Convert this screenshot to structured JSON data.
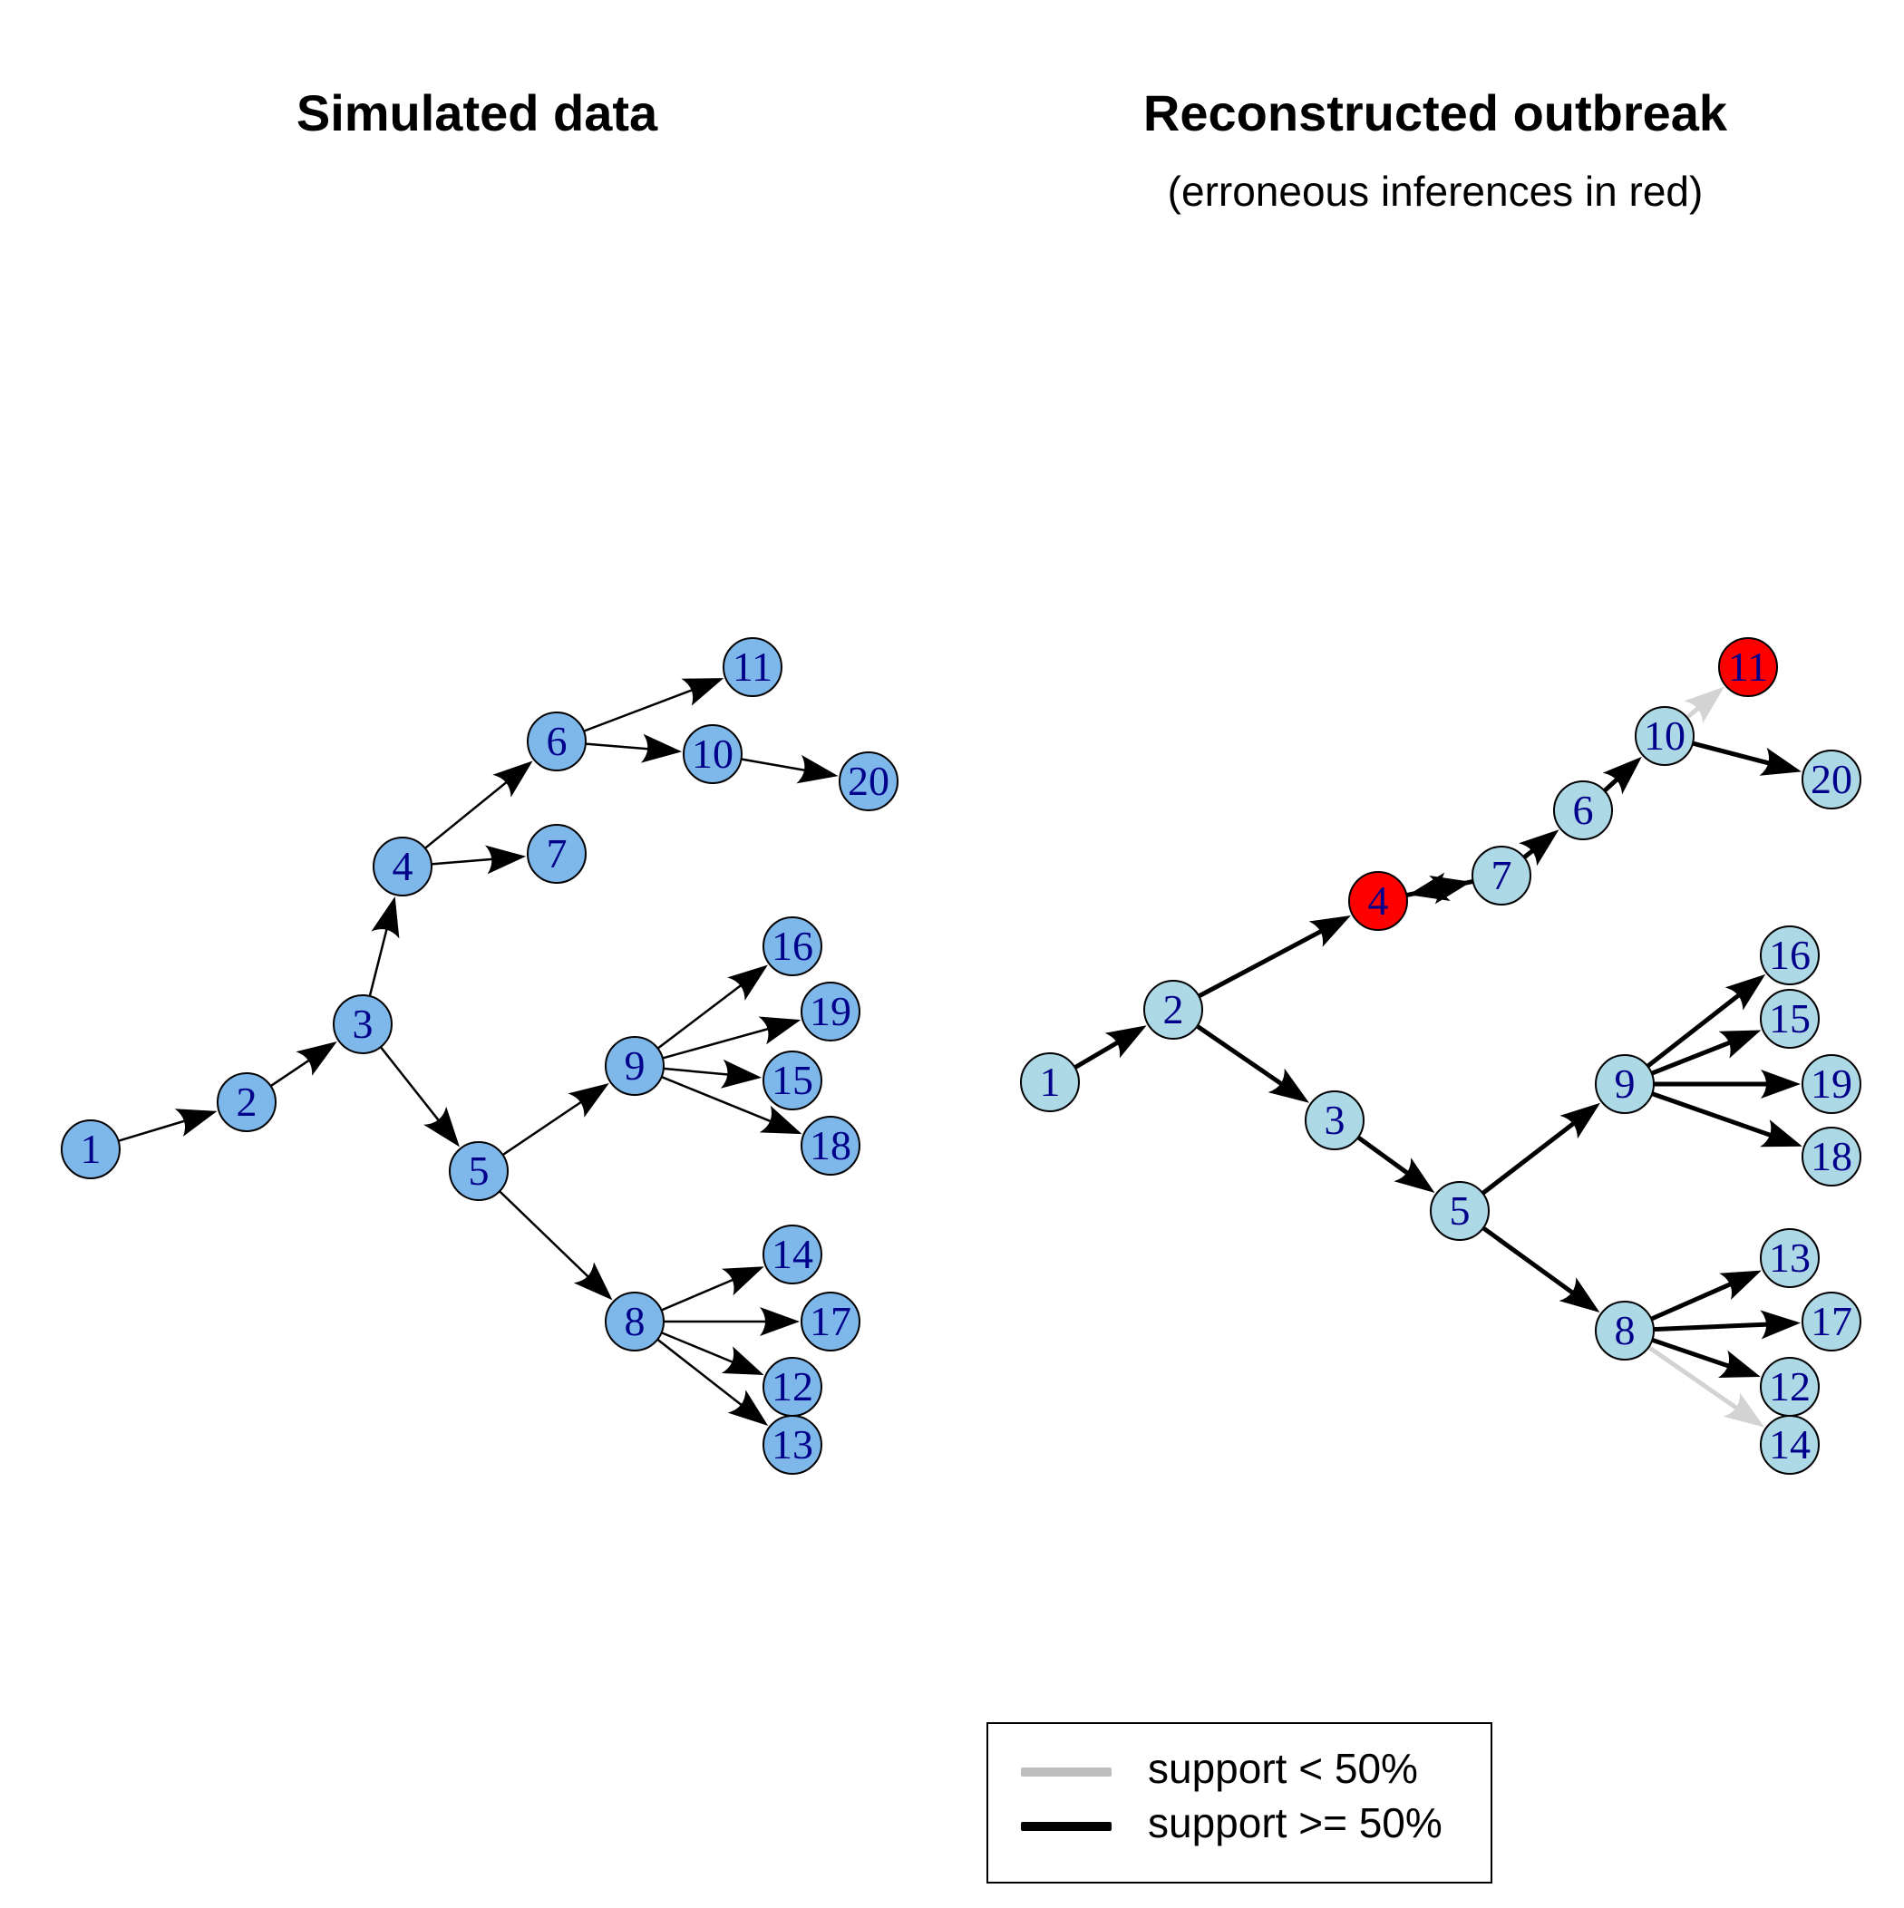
{
  "panels": [
    {
      "title": "Simulated data",
      "subtitle": "",
      "node_fill": "#7EB8EA",
      "edge_style": "thin",
      "nodes": [
        "1",
        "2",
        "3",
        "4",
        "5",
        "6",
        "7",
        "8",
        "9",
        "10",
        "11",
        "12",
        "13",
        "14",
        "15",
        "16",
        "17",
        "18",
        "19",
        "20"
      ],
      "edges": [
        {
          "from": "1",
          "to": "2",
          "support": "high"
        },
        {
          "from": "2",
          "to": "3",
          "support": "high"
        },
        {
          "from": "3",
          "to": "4",
          "support": "high"
        },
        {
          "from": "3",
          "to": "5",
          "support": "high"
        },
        {
          "from": "4",
          "to": "6",
          "support": "high"
        },
        {
          "from": "4",
          "to": "7",
          "support": "high"
        },
        {
          "from": "6",
          "to": "11",
          "support": "high"
        },
        {
          "from": "6",
          "to": "10",
          "support": "high"
        },
        {
          "from": "10",
          "to": "20",
          "support": "high"
        },
        {
          "from": "5",
          "to": "9",
          "support": "high"
        },
        {
          "from": "5",
          "to": "8",
          "support": "high"
        },
        {
          "from": "9",
          "to": "16",
          "support": "high"
        },
        {
          "from": "9",
          "to": "19",
          "support": "high"
        },
        {
          "from": "9",
          "to": "15",
          "support": "high"
        },
        {
          "from": "9",
          "to": "18",
          "support": "high"
        },
        {
          "from": "8",
          "to": "14",
          "support": "high"
        },
        {
          "from": "8",
          "to": "17",
          "support": "high"
        },
        {
          "from": "8",
          "to": "12",
          "support": "high"
        },
        {
          "from": "8",
          "to": "13",
          "support": "high"
        }
      ],
      "highlighted_nodes": []
    },
    {
      "title": "Reconstructed outbreak",
      "subtitle": "(erroneous inferences in red)",
      "node_fill": "#ADD8E6",
      "edge_style": "thick",
      "nodes": [
        "1",
        "2",
        "3",
        "4",
        "5",
        "6",
        "7",
        "8",
        "9",
        "10",
        "11",
        "12",
        "13",
        "14",
        "15",
        "16",
        "17",
        "18",
        "19",
        "20"
      ],
      "edges": [
        {
          "from": "1",
          "to": "2",
          "support": "high"
        },
        {
          "from": "2",
          "to": "4",
          "support": "high"
        },
        {
          "from": "2",
          "to": "3",
          "support": "high"
        },
        {
          "from": "3",
          "to": "5",
          "support": "high"
        },
        {
          "from": "4",
          "to": "7",
          "support": "high"
        },
        {
          "from": "7",
          "to": "4",
          "support": "high"
        },
        {
          "from": "7",
          "to": "6",
          "support": "high"
        },
        {
          "from": "6",
          "to": "10",
          "support": "high"
        },
        {
          "from": "10",
          "to": "11",
          "support": "low"
        },
        {
          "from": "10",
          "to": "20",
          "support": "high"
        },
        {
          "from": "5",
          "to": "9",
          "support": "high"
        },
        {
          "from": "5",
          "to": "8",
          "support": "high"
        },
        {
          "from": "9",
          "to": "16",
          "support": "high"
        },
        {
          "from": "9",
          "to": "15",
          "support": "high"
        },
        {
          "from": "9",
          "to": "19",
          "support": "high"
        },
        {
          "from": "9",
          "to": "18",
          "support": "high"
        },
        {
          "from": "8",
          "to": "13",
          "support": "high"
        },
        {
          "from": "8",
          "to": "17",
          "support": "high"
        },
        {
          "from": "8",
          "to": "12",
          "support": "high"
        },
        {
          "from": "8",
          "to": "14",
          "support": "low"
        }
      ],
      "highlighted_nodes": [
        "4",
        "11"
      ]
    }
  ],
  "legend": {
    "items": [
      {
        "label": "support < 50%",
        "color": "#BEBEBE"
      },
      {
        "label": "support >= 50%",
        "color": "#000000"
      }
    ]
  },
  "colors": {
    "error_node": "#FF0000",
    "low_support_edge": "#D3D3D3",
    "high_support_edge": "#000000",
    "node_outline": "#000000",
    "node_label": "#00008B"
  }
}
